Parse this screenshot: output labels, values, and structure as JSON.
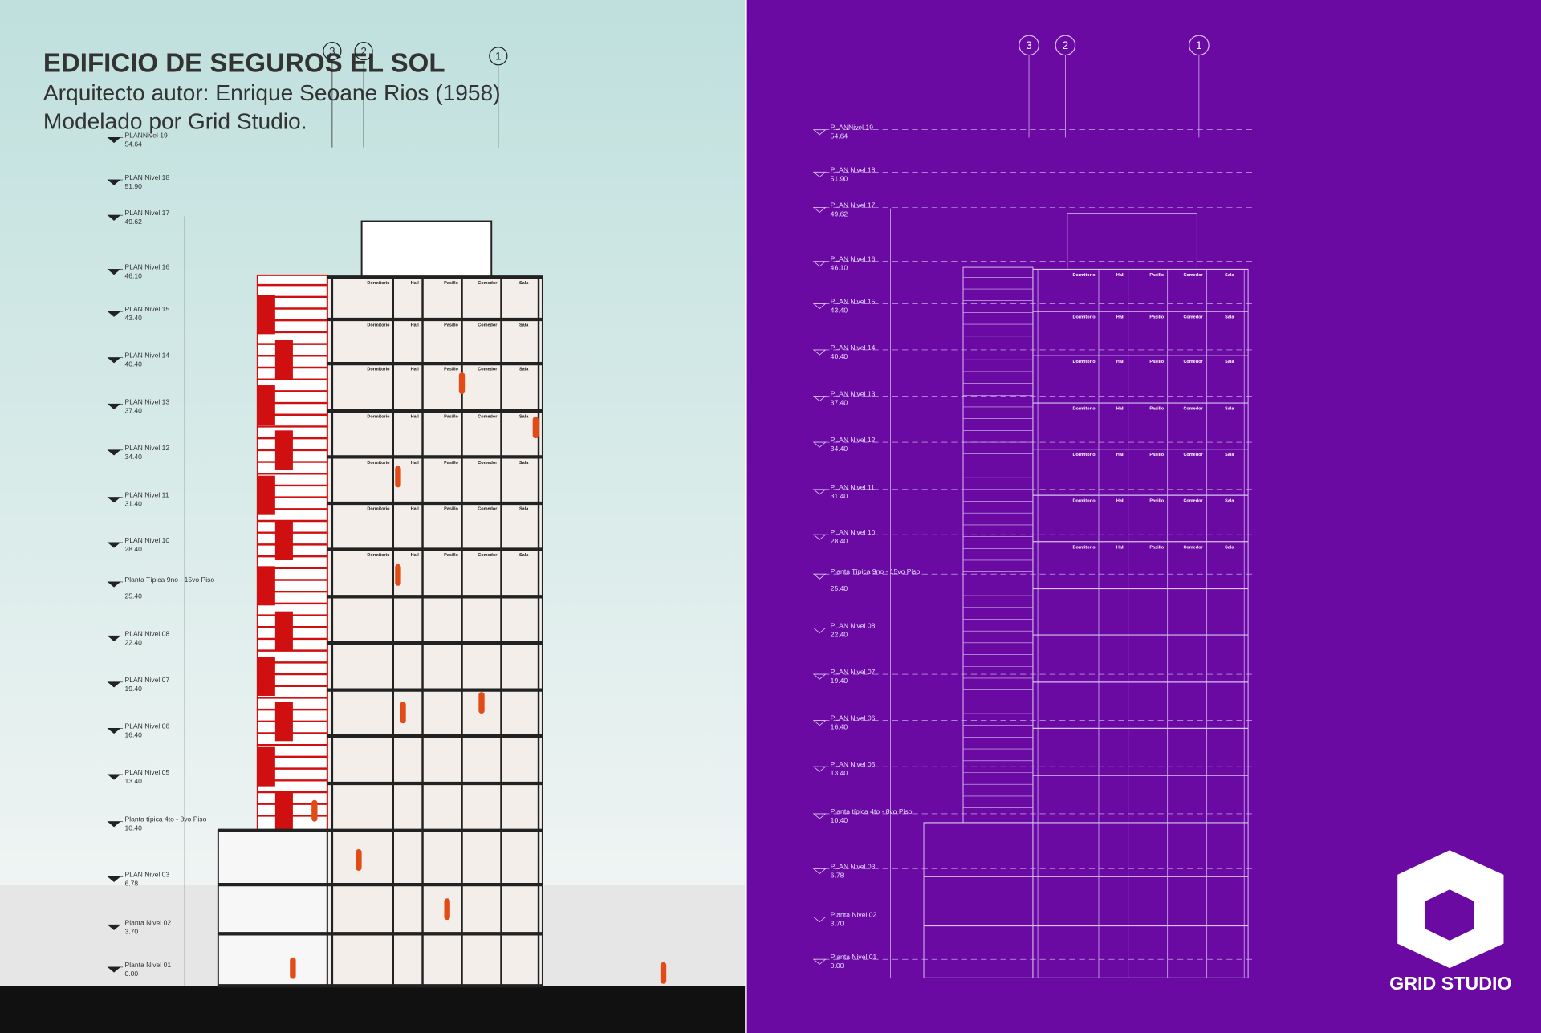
{
  "header": {
    "title": "EDIFICIO DE SEGUROS EL SOL",
    "subtitle": "Arquitecto autor: Enrique Seoane Rios (1958)",
    "credit": "Modelado por Grid Studio."
  },
  "grid_axes": [
    "3",
    "2",
    "1"
  ],
  "levels": [
    {
      "name": "PLANNivel 19",
      "elevation": "54.64"
    },
    {
      "name": "PLAN Nivel 18",
      "elevation": "51.90"
    },
    {
      "name": "PLAN Nivel 17",
      "elevation": "49.62"
    },
    {
      "name": "PLAN Nivel 16",
      "elevation": "46.10"
    },
    {
      "name": "PLAN Nivel 15",
      "elevation": "43.40"
    },
    {
      "name": "PLAN Nivel 14",
      "elevation": "40.40"
    },
    {
      "name": "PLAN Nivel 13",
      "elevation": "37.40"
    },
    {
      "name": "PLAN Nivel 12",
      "elevation": "34.40"
    },
    {
      "name": "PLAN Nivel 11",
      "elevation": "31.40"
    },
    {
      "name": "PLAN Nivel 10",
      "elevation": "28.40"
    },
    {
      "name": "Planta Típica 9no - 15vo Piso",
      "elevation": "25.40"
    },
    {
      "name": "PLAN Nivel 08",
      "elevation": "22.40"
    },
    {
      "name": "PLAN Nivel 07",
      "elevation": "19.40"
    },
    {
      "name": "PLAN Nivel 06",
      "elevation": "16.40"
    },
    {
      "name": "PLAN Nivel 05",
      "elevation": "13.40"
    },
    {
      "name": "Planta típica 4to - 8vo Piso",
      "elevation": "10.40"
    },
    {
      "name": "PLAN Nivel 03",
      "elevation": "6.78"
    },
    {
      "name": "Planta Nivel 02",
      "elevation": "3.70"
    },
    {
      "name": "Planta Nivel 01",
      "elevation": "0.00"
    }
  ],
  "rooms": [
    "Dormitorio",
    "Hall",
    "Pasillo",
    "Comedor",
    "Sala"
  ],
  "logo": "GRID STUDIO"
}
